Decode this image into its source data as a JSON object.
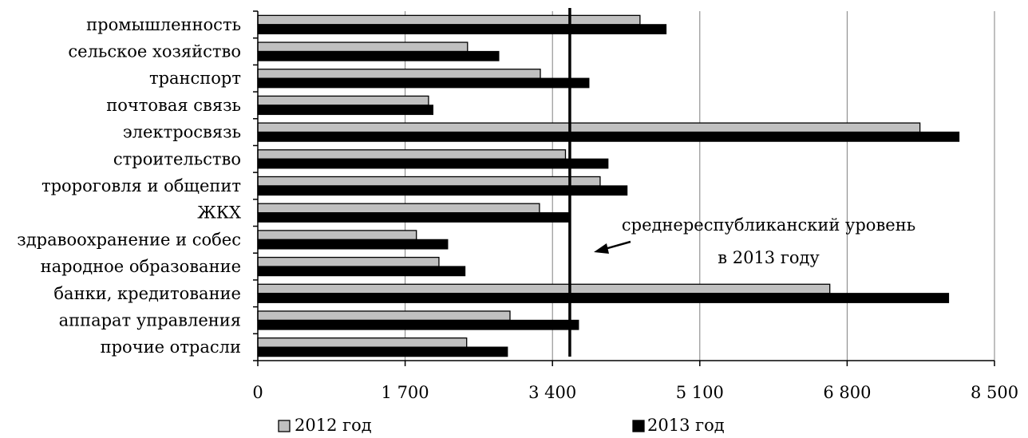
{
  "chart_data": {
    "type": "bar",
    "orientation": "horizontal",
    "categories": [
      "промышленность",
      "сельское хозяйство",
      "транспорт",
      "почтовая связь",
      "электросвязь",
      "строительство",
      "тророговля и общепит",
      "ЖКХ",
      "здравоохранение и собес",
      "народное образование",
      "банки, кредитование",
      "аппарат управления",
      "прочие отрасли"
    ],
    "series": [
      {
        "name": "2012 год",
        "color": "#c0c0c0",
        "values": [
          4410,
          2420,
          3260,
          1970,
          7640,
          3550,
          3950,
          3250,
          1830,
          2090,
          6600,
          2910,
          2410
        ]
      },
      {
        "name": "2013 год",
        "color": "#000000",
        "values": [
          4710,
          2780,
          3820,
          2020,
          8090,
          4040,
          4260,
          3600,
          2190,
          2390,
          7970,
          3700,
          2880
        ]
      }
    ],
    "xlim": [
      0,
      8500
    ],
    "x_ticks": [
      0,
      1700,
      3400,
      5100,
      6800,
      8500
    ],
    "x_tick_labels": [
      "0",
      "1 700",
      "3 400",
      "5 100",
      "6 800",
      "8 500"
    ],
    "grid": "vertical",
    "reference_line": {
      "value": 3600,
      "label_lines": [
        "среднереспубликанский уровень",
        "в 2013 году"
      ]
    },
    "legend_position": "bottom"
  }
}
